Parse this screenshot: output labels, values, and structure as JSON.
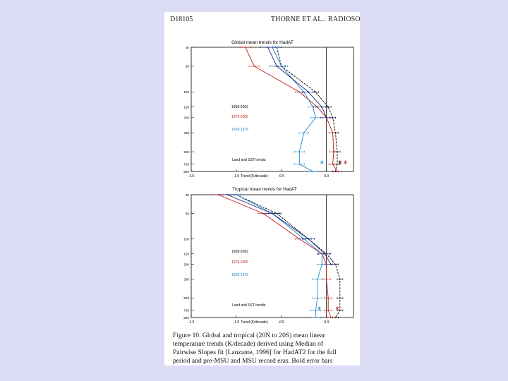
{
  "page": {
    "header_left": "D18105",
    "header_right": "THORNE ET AL.: RADIOSONDE"
  },
  "colors": {
    "black": "#000000",
    "red": "#c41818",
    "blue": "#1f8ad0",
    "navy": "#1a1f7a"
  },
  "chart_data": [
    {
      "type": "line",
      "title": "Global mean trends for HadAT",
      "xlabel": "Trend (K/decade)",
      "xticks": [
        "-1.5",
        "-1.0",
        "-0.5",
        "0.0"
      ],
      "xlim": [
        -1.5,
        0.3
      ],
      "yscale": "log-pressure",
      "yticks": [
        "30",
        "50",
        "100",
        "150",
        "200",
        "300",
        "500",
        "700",
        "850"
      ],
      "ylim": [
        30,
        850
      ],
      "legend": [
        "1958-2002",
        "1979-2005",
        "1958-1978"
      ],
      "legend_colors": [
        "#000000",
        "#c41818",
        "#1f8ad0"
      ],
      "annotation": "Land and SST trends:",
      "series": [
        {
          "name": "1958-2002",
          "color": "#000000",
          "dash": true,
          "points": [
            [
              -0.55,
              30
            ],
            [
              -0.5,
              50
            ],
            [
              -0.12,
              100
            ],
            [
              0.02,
              150
            ],
            [
              0.07,
              200
            ],
            [
              0.1,
              300
            ],
            [
              0.12,
              500
            ],
            [
              0.12,
              700
            ],
            [
              0.1,
              850
            ]
          ]
        },
        {
          "name": "1979-2005",
          "color": "#c41818",
          "points": [
            [
              -0.9,
              30
            ],
            [
              -0.8,
              50
            ],
            [
              -0.3,
              100
            ],
            [
              -0.1,
              150
            ],
            [
              0.0,
              200
            ],
            [
              0.07,
              300
            ],
            [
              0.08,
              500
            ],
            [
              0.07,
              700
            ],
            [
              0.12,
              850
            ]
          ]
        },
        {
          "name": "1958-1978",
          "color": "#1f8ad0",
          "points": [
            [
              -0.6,
              30
            ],
            [
              -0.5,
              50
            ],
            [
              -0.25,
              100
            ],
            [
              -0.15,
              150
            ],
            [
              -0.12,
              200
            ],
            [
              -0.25,
              300
            ],
            [
              -0.3,
              500
            ],
            [
              -0.3,
              700
            ],
            [
              -0.15,
              850
            ]
          ]
        },
        {
          "name": "",
          "color": "#1a1f7a",
          "points": [
            [
              -0.65,
              30
            ],
            [
              -0.55,
              50
            ],
            [
              -0.2,
              100
            ],
            [
              -0.05,
              150
            ],
            [
              0.0,
              200
            ]
          ]
        }
      ],
      "land_sst": [
        {
          "x": -0.05,
          "color": "#1f8ad0"
        },
        {
          "x": 0.15,
          "color": "#000000"
        },
        {
          "x": 0.21,
          "color": "#c41818"
        }
      ]
    },
    {
      "type": "line",
      "title": "Tropical mean trends for HadAT",
      "xlabel": "Trend (K/decade)",
      "xticks": [
        "-1.5",
        "-1.0",
        "-0.5",
        "0.0"
      ],
      "xlim": [
        -1.5,
        0.3
      ],
      "yscale": "log-pressure",
      "yticks": [
        "30",
        "50",
        "100",
        "150",
        "200",
        "300",
        "500",
        "700",
        "850"
      ],
      "ylim": [
        30,
        850
      ],
      "legend": [
        "1958-2002",
        "1979-2005",
        "1958-1978"
      ],
      "legend_colors": [
        "#000000",
        "#c41818",
        "#1f8ad0"
      ],
      "annotation": "Land and SST trends:",
      "series": [
        {
          "name": "1958-2002",
          "color": "#000000",
          "dash": true,
          "points": [
            [
              -1.0,
              30
            ],
            [
              -0.55,
              50
            ],
            [
              -0.2,
              100
            ],
            [
              0.0,
              150
            ],
            [
              0.1,
              200
            ],
            [
              0.15,
              300
            ],
            [
              0.15,
              500
            ],
            [
              0.15,
              700
            ],
            [
              0.1,
              850
            ]
          ]
        },
        {
          "name": "1979-2005",
          "color": "#c41818",
          "points": [
            [
              -1.2,
              30
            ],
            [
              -0.7,
              50
            ],
            [
              -0.3,
              100
            ],
            [
              -0.05,
              150
            ],
            [
              0.0,
              200
            ],
            [
              0.0,
              300
            ],
            [
              0.02,
              500
            ],
            [
              0.02,
              700
            ],
            [
              0.05,
              850
            ]
          ]
        },
        {
          "name": "1958-1978",
          "color": "#1f8ad0",
          "points": [
            [
              -1.0,
              30
            ],
            [
              -0.6,
              50
            ],
            [
              -0.25,
              100
            ],
            [
              -0.05,
              150
            ],
            [
              -0.05,
              200
            ],
            [
              -0.1,
              300
            ],
            [
              -0.1,
              500
            ],
            [
              -0.12,
              700
            ],
            [
              -0.12,
              850
            ]
          ]
        },
        {
          "name": "",
          "color": "#1a1f7a",
          "points": [
            [
              -1.1,
              30
            ],
            [
              -0.6,
              50
            ],
            [
              -0.2,
              100
            ],
            [
              -0.02,
              150
            ],
            [
              0.05,
              200
            ]
          ]
        }
      ],
      "land_sst": [
        {
          "x": -0.08,
          "color": "#1f8ad0"
        },
        {
          "x": 0.12,
          "color": "#c41818"
        }
      ]
    }
  ],
  "caption": {
    "lines": [
      "Figure 10.  Global and tropical (20N to 20S) mean linear",
      "temperature trends (K/decade) derived using Median of",
      "Pairwise Slopes fit [Lanzante, 1996] for HadAT2 for the full",
      "period and pre-MSU and MSU record eras. Bold error bars"
    ]
  }
}
